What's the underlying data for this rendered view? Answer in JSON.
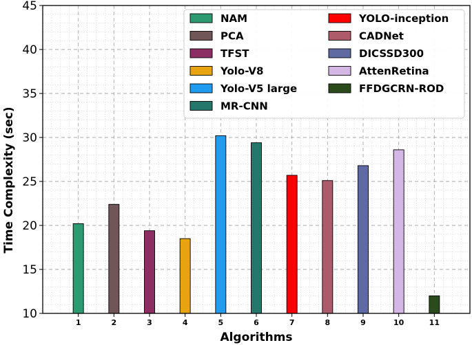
{
  "chart_data": {
    "type": "bar",
    "title": "",
    "xlabel": "Algorithms",
    "ylabel": "Time Complexity (sec)",
    "ylim": [
      10,
      45
    ],
    "yticks": [
      10,
      15,
      20,
      25,
      30,
      35,
      40,
      45
    ],
    "grid": true,
    "legend_position": "top-right",
    "categories": [
      "1",
      "2",
      "3",
      "4",
      "5",
      "6",
      "7",
      "8",
      "9",
      "10",
      "11"
    ],
    "series": [
      {
        "name": "NAM",
        "color": "#2e9a72",
        "values": [
          20.2,
          null,
          null,
          null,
          null,
          null,
          null,
          null,
          null,
          null,
          null
        ]
      },
      {
        "name": "PCA",
        "color": "#705656",
        "values": [
          null,
          22.4,
          null,
          null,
          null,
          null,
          null,
          null,
          null,
          null,
          null
        ]
      },
      {
        "name": "TFST",
        "color": "#8c2d63",
        "values": [
          null,
          null,
          19.4,
          null,
          null,
          null,
          null,
          null,
          null,
          null,
          null
        ]
      },
      {
        "name": "Yolo-V8",
        "color": "#e8a410",
        "values": [
          null,
          null,
          null,
          18.5,
          null,
          null,
          null,
          null,
          null,
          null,
          null
        ]
      },
      {
        "name": "Yolo-V5 large",
        "color": "#1f9cf0",
        "values": [
          null,
          null,
          null,
          null,
          30.2,
          null,
          null,
          null,
          null,
          null,
          null
        ]
      },
      {
        "name": "MR-CNN",
        "color": "#24776a",
        "values": [
          null,
          null,
          null,
          null,
          null,
          29.4,
          null,
          null,
          null,
          null,
          null
        ]
      },
      {
        "name": "YOLO-inception",
        "color": "#ff0000",
        "values": [
          null,
          null,
          null,
          null,
          null,
          null,
          25.7,
          null,
          null,
          null,
          null
        ]
      },
      {
        "name": "CADNet",
        "color": "#ad5b6a",
        "values": [
          null,
          null,
          null,
          null,
          null,
          null,
          null,
          25.1,
          null,
          null,
          null
        ]
      },
      {
        "name": "DICSSD300",
        "color": "#5f6aa2",
        "values": [
          null,
          null,
          null,
          null,
          null,
          null,
          null,
          null,
          26.8,
          null,
          null
        ]
      },
      {
        "name": "AttenRetina",
        "color": "#d5b7e5",
        "values": [
          null,
          null,
          null,
          null,
          null,
          null,
          null,
          null,
          null,
          28.6,
          null
        ]
      },
      {
        "name": "FFDGCRN-ROD",
        "color": "#2b4b1c",
        "values": [
          null,
          null,
          null,
          null,
          null,
          null,
          null,
          null,
          null,
          null,
          12.0
        ]
      }
    ]
  }
}
